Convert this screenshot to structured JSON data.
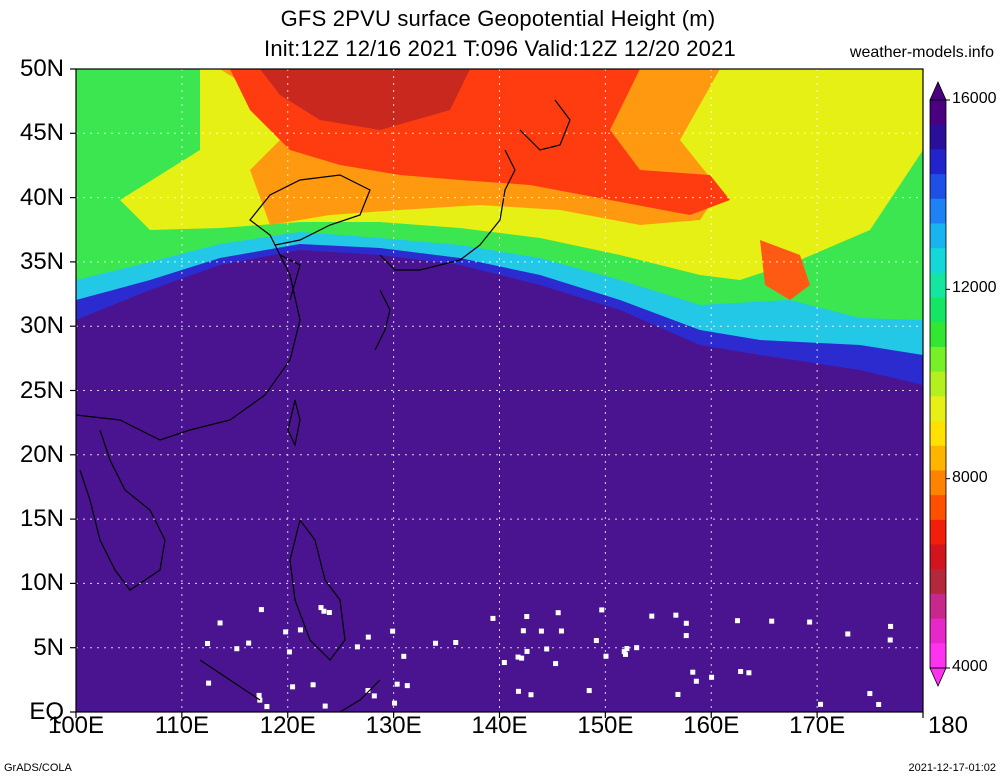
{
  "title": {
    "line1": "GFS 2PVU surface Geopotential Height (m)",
    "line2": "Init:12Z 12/16 2021 T:096 Valid:12Z 12/20 2021"
  },
  "site": "weather-models.info",
  "lat_labels": [
    "50N",
    "45N",
    "40N",
    "35N",
    "30N",
    "25N",
    "20N",
    "15N",
    "10N",
    "5N",
    "EQ"
  ],
  "lon_labels": [
    "100E",
    "110E",
    "120E",
    "130E",
    "140E",
    "150E",
    "160E",
    "170E",
    "180"
  ],
  "colorbar": {
    "labels": [
      "16000",
      "12000",
      "8000",
      "4000"
    ],
    "colors": [
      "#4b0082",
      "#2a0f9a",
      "#2323cc",
      "#1e4fe6",
      "#1e82f5",
      "#18b4f0",
      "#14d7d7",
      "#14e6a0",
      "#14e664",
      "#32e632",
      "#78f028",
      "#b4f01e",
      "#e6f014",
      "#ffe100",
      "#ffb400",
      "#ff8200",
      "#ff5000",
      "#f01e0a",
      "#d2141e",
      "#b4283c",
      "#c8288c",
      "#e628c8",
      "#ff32f0"
    ]
  },
  "footer": {
    "left": "GrADS/COLA",
    "right": "2021-12-17-01:02"
  },
  "map_colors": {
    "tropics": "#4a1490",
    "blue_edge": "#2b2bd0",
    "cyan": "#22c8e6",
    "green": "#3ce650",
    "yellow": "#e6f014",
    "orange": "#ff9a10",
    "red": "#ff3c10",
    "dark_red": "#c8281e"
  }
}
